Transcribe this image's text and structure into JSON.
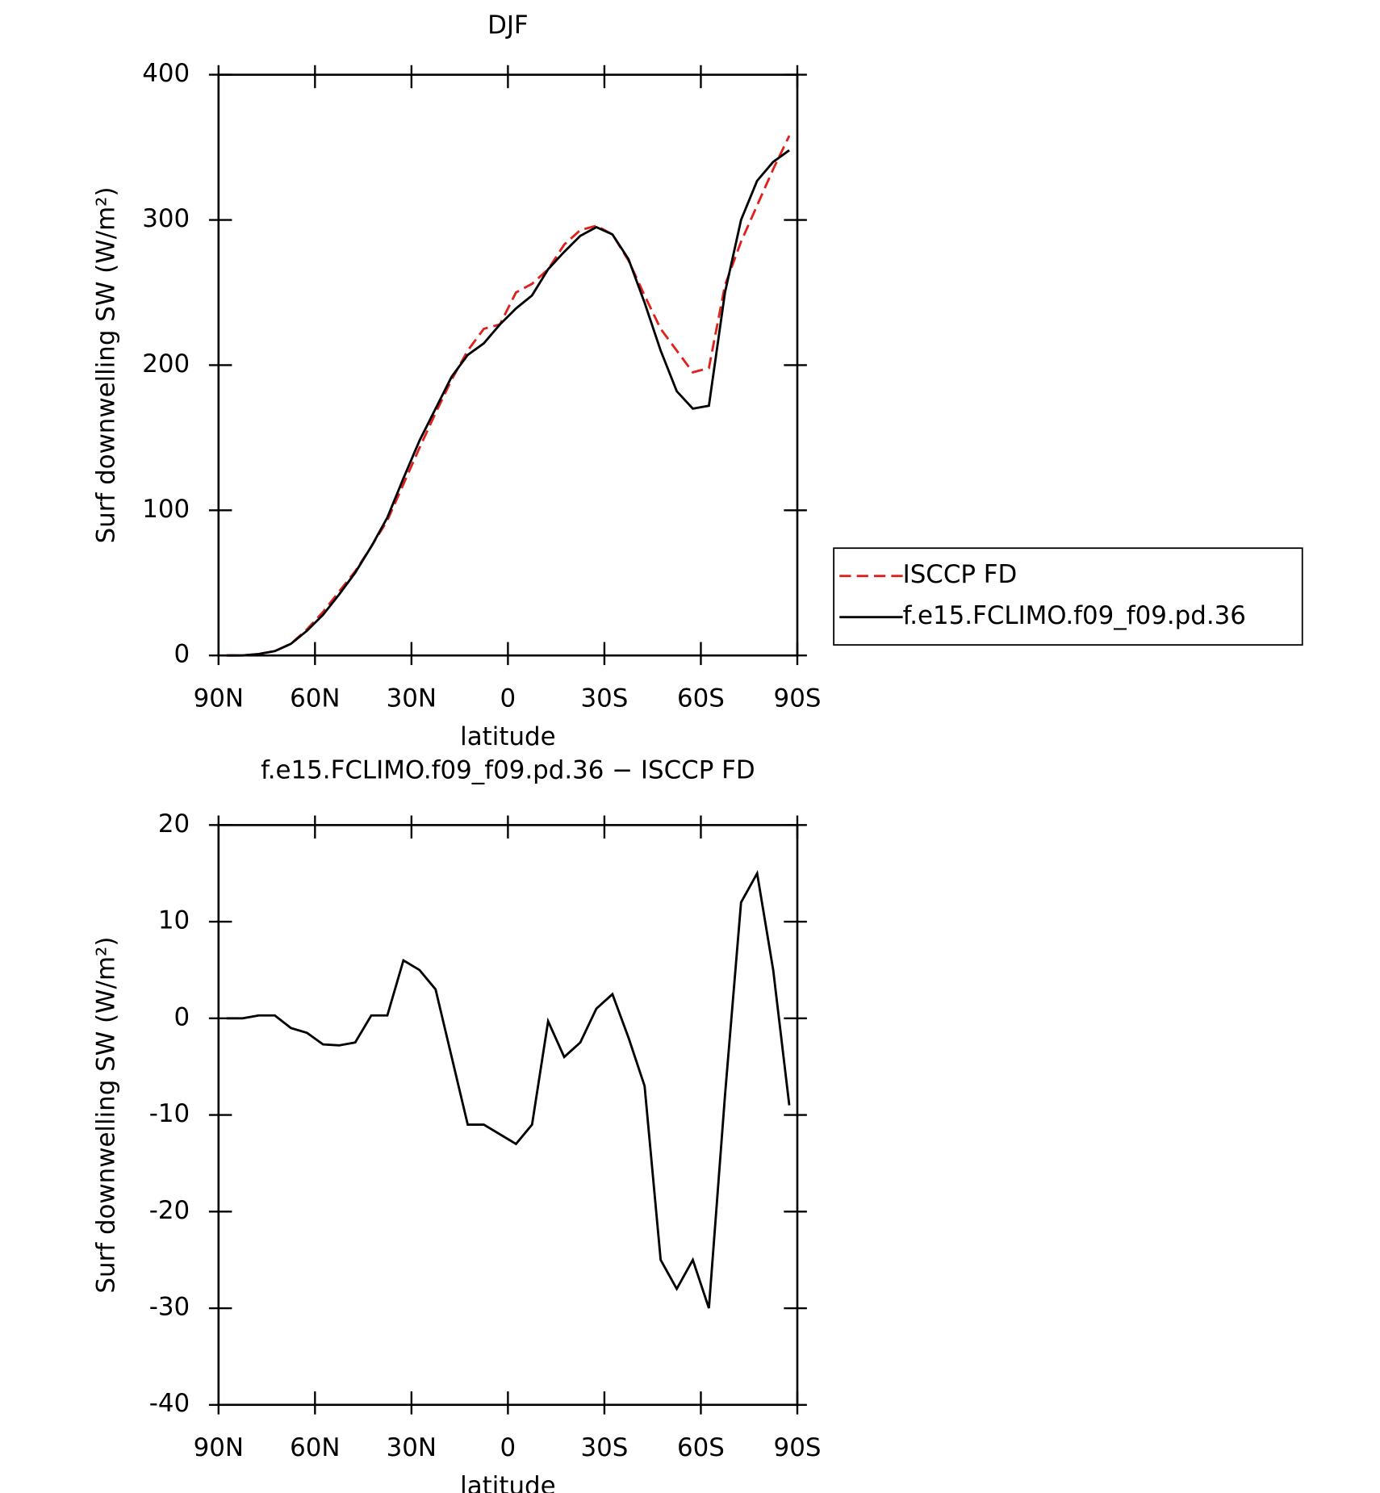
{
  "chart_data": [
    {
      "type": "line",
      "title": "DJF",
      "xlabel": "latitude",
      "ylabel": "Surf downwelling SW (W/m²)",
      "x": [
        87.5,
        82.5,
        77.5,
        72.5,
        67.5,
        62.5,
        57.5,
        52.5,
        47.5,
        42.5,
        37.5,
        32.5,
        27.5,
        22.5,
        17.5,
        12.5,
        7.5,
        2.5,
        -2.5,
        -7.5,
        -12.5,
        -17.5,
        -22.5,
        -27.5,
        -32.5,
        -37.5,
        -42.5,
        -47.5,
        -52.5,
        -57.5,
        -62.5,
        -67.5,
        -72.5,
        -77.5,
        -82.5,
        -87.5
      ],
      "series": [
        {
          "name": "ISCCP FD",
          "color": "#e0201b",
          "dash": true,
          "values": [
            0,
            0,
            1,
            3,
            8,
            18,
            30,
            44,
            58,
            75,
            93,
            118,
            143,
            167,
            190,
            210,
            225,
            228,
            250,
            256,
            266,
            283,
            293,
            296,
            290,
            272,
            248,
            225,
            210,
            195,
            198,
            255,
            285,
            310,
            335,
            358
          ]
        },
        {
          "name": "f.e15.FCLIMO.f09_f09.pd.36",
          "color": "#000000",
          "dash": false,
          "values": [
            0,
            0,
            1,
            3,
            8,
            17,
            28,
            42,
            57,
            75,
            95,
            122,
            148,
            170,
            192,
            207,
            215,
            228,
            239,
            248,
            266,
            278,
            289,
            295,
            290,
            273,
            243,
            210,
            182,
            170,
            172,
            250,
            300,
            327,
            340,
            348
          ]
        }
      ],
      "xlim": [
        90,
        -90
      ],
      "xticks": [
        {
          "value": 90,
          "label": "90N"
        },
        {
          "value": 60,
          "label": "60N"
        },
        {
          "value": 30,
          "label": "30N"
        },
        0,
        {
          "value": -30,
          "label": "30S"
        },
        {
          "value": -60,
          "label": "60S"
        },
        {
          "value": -90,
          "label": "90S"
        }
      ],
      "ylim": [
        0,
        400
      ],
      "yticks": [
        0,
        100,
        200,
        300,
        400
      ],
      "legend": "right"
    },
    {
      "type": "line",
      "title": "f.e15.FCLIMO.f09_f09.pd.36 − ISCCP FD",
      "xlabel": "latitude",
      "ylabel": "Surf downwelling SW (W/m²)",
      "x": [
        87.5,
        82.5,
        77.5,
        72.5,
        67.5,
        62.5,
        57.5,
        52.5,
        47.5,
        42.5,
        37.5,
        32.5,
        27.5,
        22.5,
        17.5,
        12.5,
        7.5,
        2.5,
        -2.5,
        -7.5,
        -12.5,
        -17.5,
        -22.5,
        -27.5,
        -32.5,
        -37.5,
        -42.5,
        -47.5,
        -52.5,
        -57.5,
        -62.5,
        -67.5,
        -72.5,
        -77.5,
        -82.5,
        -87.5
      ],
      "series": [
        {
          "color": "#000000",
          "dash": false,
          "values": [
            0,
            0,
            0.3,
            0.3,
            -1,
            -1.5,
            -2.7,
            -2.8,
            -2.5,
            0.3,
            0.3,
            6,
            5,
            3,
            -4,
            -11,
            -11,
            -12,
            -13,
            -11,
            -0.3,
            -4,
            -2.5,
            1,
            2.5,
            -2,
            -7,
            -25,
            -28,
            -25,
            -30,
            -8,
            12,
            15,
            5,
            -9
          ]
        }
      ],
      "xlim": [
        90,
        -90
      ],
      "xticks": [
        {
          "value": 90,
          "label": "90N"
        },
        {
          "value": 60,
          "label": "60N"
        },
        {
          "value": 30,
          "label": "30N"
        },
        0,
        {
          "value": -30,
          "label": "30S"
        },
        {
          "value": -60,
          "label": "60S"
        },
        {
          "value": -90,
          "label": "90S"
        }
      ],
      "ylim": [
        -40,
        20
      ],
      "yticks": [
        -40,
        -30,
        -20,
        -10,
        0,
        10,
        20
      ]
    }
  ]
}
